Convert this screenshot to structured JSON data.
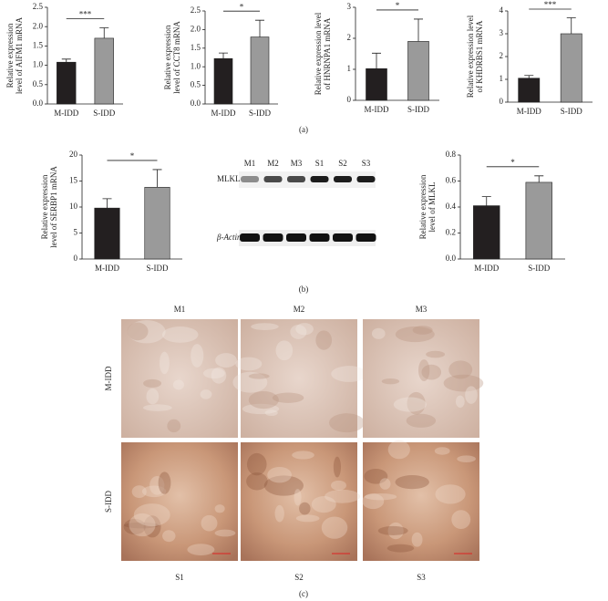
{
  "chart_data": [
    {
      "type": "bar",
      "ylabel": [
        "Relative expression",
        "level of AIFM1 mRNA"
      ],
      "categories": [
        "M-IDD",
        "S-IDD"
      ],
      "values": [
        1.08,
        1.7
      ],
      "errors": [
        0.08,
        0.27
      ],
      "colors": [
        "#231f20",
        "#9a9a9a"
      ],
      "significance": "***",
      "ylim": [
        0,
        2.5
      ],
      "yticks": [
        {
          "value": 0,
          "label": "0.0"
        },
        0.5,
        {
          "value": 1,
          "label": "1.0"
        },
        1.5,
        {
          "value": 2,
          "label": "2.0"
        },
        2.5
      ]
    },
    {
      "type": "bar",
      "ylabel": [
        "Relative expression",
        "level of CCT8 mRNA"
      ],
      "categories": [
        "M-IDD",
        "S-IDD"
      ],
      "values": [
        1.22,
        1.8
      ],
      "errors": [
        0.15,
        0.45
      ],
      "colors": [
        "#231f20",
        "#9a9a9a"
      ],
      "significance": "*",
      "ylim": [
        0,
        2.5
      ],
      "yticks": [
        {
          "value": 0,
          "label": "0.0"
        },
        0.5,
        {
          "value": 1,
          "label": "1.0"
        },
        1.5,
        {
          "value": 2,
          "label": "2.0"
        },
        2.5
      ]
    },
    {
      "type": "bar",
      "ylabel": [
        "Relative expression level",
        "of HNRNPA1 mRNA"
      ],
      "categories": [
        "M-IDD",
        "S-IDD"
      ],
      "values": [
        1.02,
        1.9
      ],
      "errors": [
        0.5,
        0.72
      ],
      "colors": [
        "#231f20",
        "#9a9a9a"
      ],
      "significance": "*",
      "ylim": [
        0,
        3
      ],
      "yticks": [
        0,
        1,
        2,
        3
      ]
    },
    {
      "type": "bar",
      "ylabel": [
        "Relative expression level",
        "of KHDRBS1 mRNA"
      ],
      "categories": [
        "M-IDD",
        "S-IDD"
      ],
      "values": [
        1.05,
        3.0
      ],
      "errors": [
        0.12,
        0.7
      ],
      "colors": [
        "#231f20",
        "#9a9a9a"
      ],
      "significance": "***",
      "ylim": [
        0,
        4
      ],
      "yticks": [
        0,
        1,
        2,
        3,
        4
      ]
    },
    {
      "type": "bar",
      "ylabel": [
        "Relative expression",
        "level of SERBP1 mRNA"
      ],
      "categories": [
        "M-IDD",
        "S-IDD"
      ],
      "values": [
        9.8,
        13.8
      ],
      "errors": [
        1.8,
        3.4
      ],
      "colors": [
        "#231f20",
        "#9a9a9a"
      ],
      "significance": "*",
      "ylim": [
        0,
        20
      ],
      "yticks": [
        0,
        5,
        10,
        15,
        20
      ]
    },
    {
      "type": "bar",
      "ylabel": [
        "Relative expression",
        "level of MLKL"
      ],
      "categories": [
        "M-IDD",
        "S-IDD"
      ],
      "values": [
        0.41,
        0.59
      ],
      "errors": [
        0.07,
        0.05
      ],
      "colors": [
        "#231f20",
        "#9a9a9a"
      ],
      "significance": "*",
      "ylim": [
        0,
        0.8
      ],
      "yticks": [
        {
          "value": 0,
          "label": "0.0"
        },
        0.2,
        0.4,
        0.6,
        0.8
      ]
    }
  ],
  "blot": {
    "lanes": [
      "M1",
      "M2",
      "M3",
      "S1",
      "S2",
      "S3"
    ],
    "rows": [
      "MLKL",
      "β-Actin"
    ]
  },
  "histology": {
    "top_labels": [
      "M1",
      "M2",
      "M3"
    ],
    "bottom_labels": [
      "S1",
      "S2",
      "S3"
    ],
    "row_labels": [
      "M-IDD",
      "S-IDD"
    ]
  },
  "panels": [
    "(a)",
    "(b)",
    "(c)"
  ]
}
